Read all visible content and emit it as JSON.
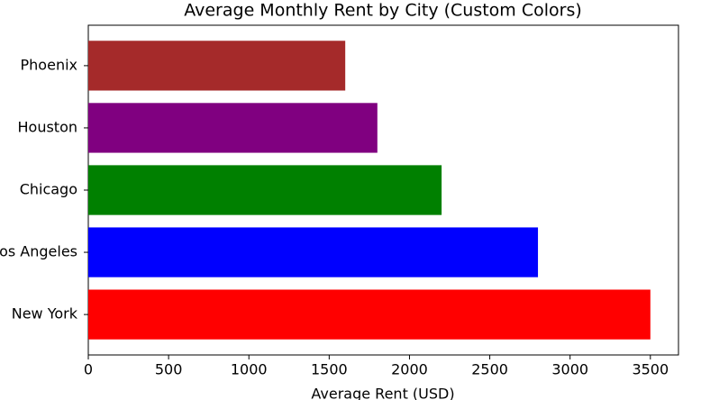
{
  "chart_data": {
    "type": "barh",
    "title": "Average Monthly Rent by City (Custom Colors)",
    "xlabel": "Average Rent (USD)",
    "categories": [
      "New York",
      "Los Angeles",
      "Chicago",
      "Houston",
      "Phoenix"
    ],
    "values": [
      3500,
      2800,
      2200,
      1800,
      1600
    ],
    "colors": [
      "#ff0000",
      "#0000ff",
      "#008000",
      "#800080",
      "#a52a2a"
    ],
    "xlim": [
      0,
      3675
    ],
    "xticks": [
      0,
      500,
      1000,
      1500,
      2000,
      2500,
      3000,
      3500
    ],
    "grid": false
  }
}
